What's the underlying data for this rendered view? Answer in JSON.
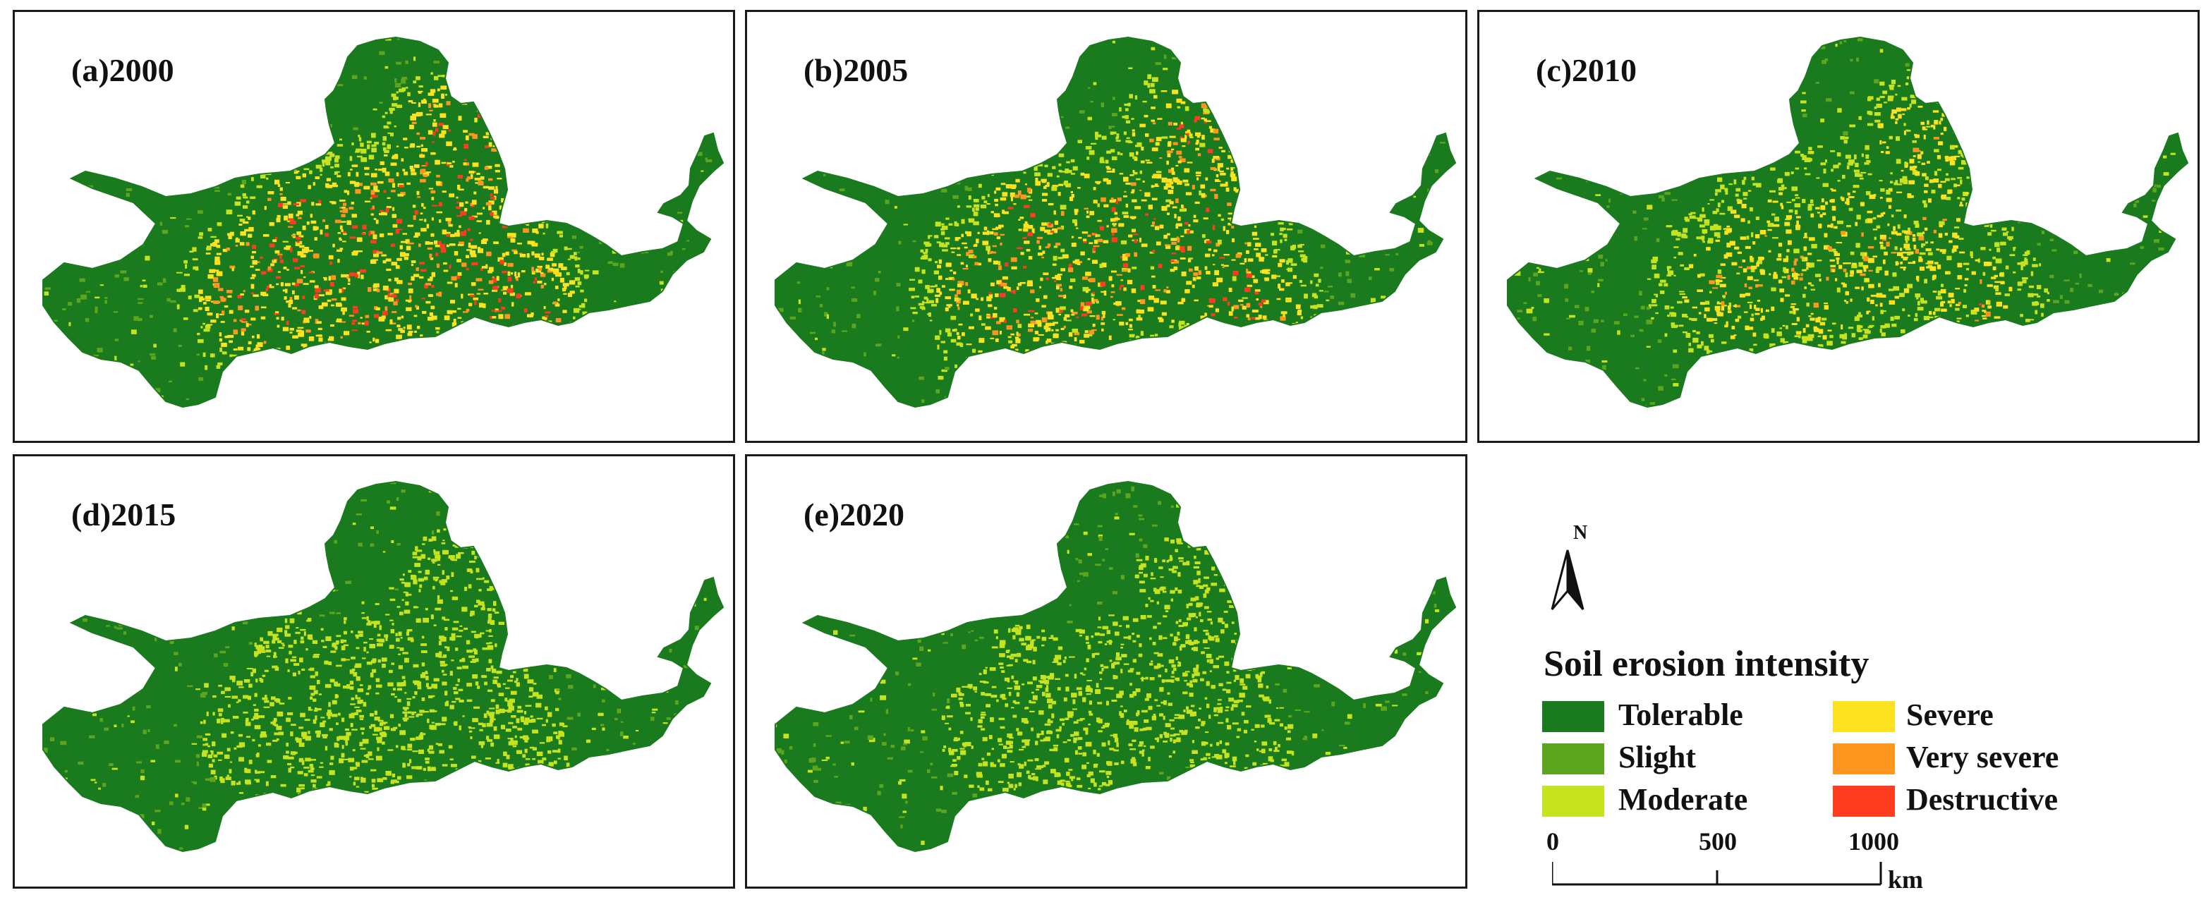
{
  "panels": [
    {
      "id": "p1",
      "label": "(a)2000",
      "intensity": 1.0,
      "seed": 11
    },
    {
      "id": "p2",
      "label": "(b)2005",
      "intensity": 0.85,
      "seed": 23
    },
    {
      "id": "p3",
      "label": "(c)2010",
      "intensity": 0.6,
      "seed": 37
    },
    {
      "id": "p4",
      "label": "(d)2015",
      "intensity": 0.3,
      "seed": 51
    },
    {
      "id": "p5",
      "label": "(e)2020",
      "intensity": 0.25,
      "seed": 67
    }
  ],
  "north_arrow": {
    "letter": "N"
  },
  "legend": {
    "title": "Soil erosion intensity",
    "classes": [
      {
        "label": "Tolerable",
        "color": "#1a7a1e"
      },
      {
        "label": "Slight",
        "color": "#5ea51f"
      },
      {
        "label": "Moderate",
        "color": "#c7e21f"
      },
      {
        "label": "Severe",
        "color": "#ffe21f"
      },
      {
        "label": "Very severe",
        "color": "#ff961f"
      },
      {
        "label": "Destructive",
        "color": "#ff3c1f"
      }
    ]
  },
  "scale": {
    "ticks": [
      "0",
      "500",
      "1000"
    ],
    "unit": "km"
  }
}
